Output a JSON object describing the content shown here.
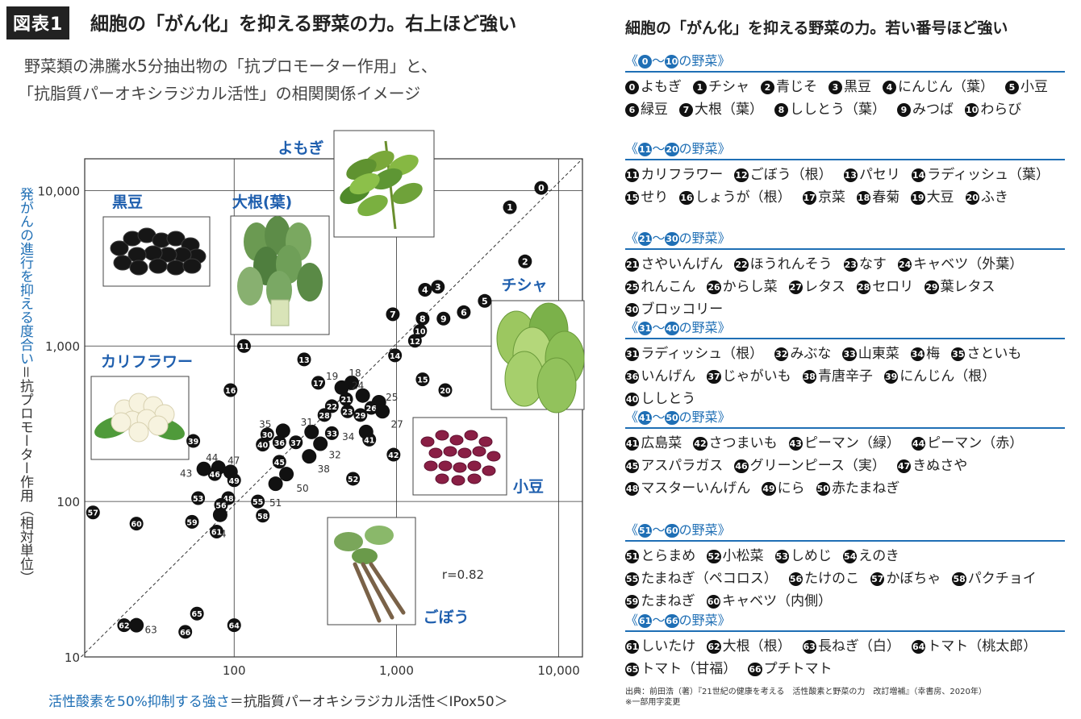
{
  "header": {
    "fig_label": "図表1",
    "title": "細胞の「がん化」を抑える野菜の力。右上ほど強い",
    "desc_line1": "野菜類の沸騰水5分抽出物の「抗プロモーター作用」と、",
    "desc_line2": "「抗脂質パーオキシラジカル活性」の相関関係イメージ"
  },
  "chart_data": {
    "type": "scatter",
    "xscale": "log",
    "yscale": "log",
    "xlim": [
      12,
      14000
    ],
    "ylim": [
      10,
      16000
    ],
    "xticks": [
      "100",
      "1,000",
      "10,000"
    ],
    "yticks": [
      "10",
      "100",
      "1,000",
      "10,000"
    ],
    "ylabel_blue": "発がんの進行を抑える度合い",
    "ylabel_rest": "＝抗プロモーター作用（相対単位）",
    "xlabel_blue": "活性酸素を50%抑制する強さ",
    "xlabel_rest": "＝抗脂質パーオキシラジカル活性＜IPox50＞",
    "correlation": "r=0.82",
    "annotations": [
      "よもぎ",
      "黒豆",
      "大根(葉)",
      "チシャ",
      "カリフラワー",
      "小豆",
      "ごぼう"
    ],
    "points": [
      {
        "label": "0",
        "x": 7800,
        "y": 10400
      },
      {
        "label": "1",
        "x": 5000,
        "y": 7800
      },
      {
        "label": "2",
        "x": 6200,
        "y": 3500
      },
      {
        "label": "3",
        "x": 1800,
        "y": 2400
      },
      {
        "label": "4",
        "x": 1500,
        "y": 2300
      },
      {
        "label": "5",
        "x": 3500,
        "y": 1950
      },
      {
        "label": "6",
        "x": 2600,
        "y": 1650
      },
      {
        "label": "7",
        "x": 950,
        "y": 1600
      },
      {
        "label": "8",
        "x": 1450,
        "y": 1500
      },
      {
        "label": "9",
        "x": 1950,
        "y": 1500
      },
      {
        "label": "10",
        "x": 1400,
        "y": 1250
      },
      {
        "label": "11",
        "x": 115,
        "y": 1000
      },
      {
        "label": "12",
        "x": 1300,
        "y": 1080
      },
      {
        "label": "13",
        "x": 270,
        "y": 820
      },
      {
        "label": "14",
        "x": 980,
        "y": 870
      },
      {
        "label": "15",
        "x": 1450,
        "y": 610
      },
      {
        "label": "16",
        "x": 95,
        "y": 520
      },
      {
        "label": "17",
        "x": 330,
        "y": 580
      },
      {
        "label": "18",
        "x": 530,
        "y": 580
      },
      {
        "label": "19",
        "x": 460,
        "y": 540
      },
      {
        "label": "20",
        "x": 2000,
        "y": 520
      },
      {
        "label": "21",
        "x": 490,
        "y": 455
      },
      {
        "label": "22",
        "x": 400,
        "y": 410
      },
      {
        "label": "23",
        "x": 500,
        "y": 380
      },
      {
        "label": "24",
        "x": 620,
        "y": 480
      },
      {
        "label": "25",
        "x": 780,
        "y": 435
      },
      {
        "label": "26",
        "x": 700,
        "y": 400
      },
      {
        "label": "27",
        "x": 820,
        "y": 380
      },
      {
        "label": "28",
        "x": 360,
        "y": 360
      },
      {
        "label": "29",
        "x": 600,
        "y": 360
      },
      {
        "label": "30",
        "x": 160,
        "y": 270
      },
      {
        "label": "31",
        "x": 300,
        "y": 280
      },
      {
        "label": "32",
        "x": 340,
        "y": 235
      },
      {
        "label": "33",
        "x": 400,
        "y": 275
      },
      {
        "label": "34",
        "x": 650,
        "y": 280
      },
      {
        "label": "35",
        "x": 200,
        "y": 285
      },
      {
        "label": "36",
        "x": 190,
        "y": 240
      },
      {
        "label": "37",
        "x": 240,
        "y": 240
      },
      {
        "label": "38",
        "x": 290,
        "y": 195
      },
      {
        "label": "39",
        "x": 56,
        "y": 245
      },
      {
        "label": "40",
        "x": 150,
        "y": 232
      },
      {
        "label": "41",
        "x": 680,
        "y": 250
      },
      {
        "label": "42",
        "x": 960,
        "y": 200
      },
      {
        "label": "43",
        "x": 65,
        "y": 162
      },
      {
        "label": "44",
        "x": 80,
        "y": 165
      },
      {
        "label": "45",
        "x": 190,
        "y": 180
      },
      {
        "label": "46",
        "x": 76,
        "y": 150
      },
      {
        "label": "47",
        "x": 95,
        "y": 155
      },
      {
        "label": "48",
        "x": 92,
        "y": 105
      },
      {
        "label": "49",
        "x": 100,
        "y": 137
      },
      {
        "label": "50",
        "x": 210,
        "y": 150
      },
      {
        "label": "51",
        "x": 180,
        "y": 130
      },
      {
        "label": "52",
        "x": 540,
        "y": 140
      },
      {
        "label": "53",
        "x": 60,
        "y": 105
      },
      {
        "label": "54",
        "x": 82,
        "y": 82
      },
      {
        "label": "55",
        "x": 140,
        "y": 100
      },
      {
        "label": "56",
        "x": 83,
        "y": 95
      },
      {
        "label": "57",
        "x": 13.5,
        "y": 85
      },
      {
        "label": "58",
        "x": 150,
        "y": 81
      },
      {
        "label": "59",
        "x": 55,
        "y": 74
      },
      {
        "label": "60",
        "x": 25,
        "y": 72
      },
      {
        "label": "61",
        "x": 78,
        "y": 64
      },
      {
        "label": "62",
        "x": 21,
        "y": 16
      },
      {
        "label": "63",
        "x": 25,
        "y": 16
      },
      {
        "label": "64",
        "x": 100,
        "y": 16
      },
      {
        "label": "65",
        "x": 59,
        "y": 19
      },
      {
        "label": "66",
        "x": 50,
        "y": 14.5
      }
    ]
  },
  "legend": {
    "title": "細胞の「がん化」を抑える野菜の力。若い番号ほど強い",
    "groups": [
      {
        "from": "0",
        "to": "10",
        "suffix": "の野菜》",
        "items": [
          {
            "n": "0",
            "name": "よもぎ"
          },
          {
            "n": "1",
            "name": "チシャ"
          },
          {
            "n": "2",
            "name": "青じそ"
          },
          {
            "n": "3",
            "name": "黒豆"
          },
          {
            "n": "4",
            "name": "にんじん（葉）"
          },
          {
            "n": "5",
            "name": "小豆"
          },
          {
            "n": "6",
            "name": "緑豆"
          },
          {
            "n": "7",
            "name": "大根（葉）"
          },
          {
            "n": "8",
            "name": "ししとう（葉）"
          },
          {
            "n": "9",
            "name": "みつば"
          },
          {
            "n": "10",
            "name": "わらび"
          }
        ]
      },
      {
        "from": "11",
        "to": "20",
        "suffix": "の野菜》",
        "items": [
          {
            "n": "11",
            "name": "カリフラワー"
          },
          {
            "n": "12",
            "name": "ごぼう（根）"
          },
          {
            "n": "13",
            "name": "パセリ"
          },
          {
            "n": "14",
            "name": "ラディッシュ（葉）"
          },
          {
            "n": "15",
            "name": "せり"
          },
          {
            "n": "16",
            "name": "しょうが（根）"
          },
          {
            "n": "17",
            "name": "京菜"
          },
          {
            "n": "18",
            "name": "春菊"
          },
          {
            "n": "19",
            "name": "大豆"
          },
          {
            "n": "20",
            "name": "ふき"
          }
        ]
      },
      {
        "from": "21",
        "to": "30",
        "suffix": "の野菜》",
        "items": [
          {
            "n": "21",
            "name": "さやいんげん"
          },
          {
            "n": "22",
            "name": "ほうれんそう"
          },
          {
            "n": "23",
            "name": "なす"
          },
          {
            "n": "24",
            "name": "キャベツ（外葉）"
          },
          {
            "n": "25",
            "name": "れんこん"
          },
          {
            "n": "26",
            "name": "からし菜"
          },
          {
            "n": "27",
            "name": "レタス"
          },
          {
            "n": "28",
            "name": "セロリ"
          },
          {
            "n": "29",
            "name": "葉レタス"
          },
          {
            "n": "30",
            "name": "ブロッコリー"
          }
        ]
      },
      {
        "from": "31",
        "to": "40",
        "suffix": "の野菜》",
        "items": [
          {
            "n": "31",
            "name": "ラディッシュ（根）"
          },
          {
            "n": "32",
            "name": "みぶな"
          },
          {
            "n": "33",
            "name": "山東菜"
          },
          {
            "n": "34",
            "name": "梅"
          },
          {
            "n": "35",
            "name": "さといも"
          },
          {
            "n": "36",
            "name": "いんげん"
          },
          {
            "n": "37",
            "name": "じゃがいも"
          },
          {
            "n": "38",
            "name": "青唐辛子"
          },
          {
            "n": "39",
            "name": "にんじん（根）"
          },
          {
            "n": "40",
            "name": "ししとう"
          }
        ]
      },
      {
        "from": "41",
        "to": "50",
        "suffix": "の野菜》",
        "items": [
          {
            "n": "41",
            "name": "広島菜"
          },
          {
            "n": "42",
            "name": "さつまいも"
          },
          {
            "n": "43",
            "name": "ピーマン（緑）"
          },
          {
            "n": "44",
            "name": "ピーマン（赤）"
          },
          {
            "n": "45",
            "name": "アスパラガス"
          },
          {
            "n": "46",
            "name": "グリーンピース（実）"
          },
          {
            "n": "47",
            "name": "きぬさや"
          },
          {
            "n": "48",
            "name": "マスターいんげん"
          },
          {
            "n": "49",
            "name": "にら"
          },
          {
            "n": "50",
            "name": "赤たまねぎ"
          }
        ]
      },
      {
        "from": "51",
        "to": "60",
        "suffix": "の野菜》",
        "items": [
          {
            "n": "51",
            "name": "とらまめ"
          },
          {
            "n": "52",
            "name": "小松菜"
          },
          {
            "n": "53",
            "name": "しめじ"
          },
          {
            "n": "54",
            "name": "えのき"
          },
          {
            "n": "55",
            "name": "たまねぎ（ペコロス）"
          },
          {
            "n": "56",
            "name": "たけのこ"
          },
          {
            "n": "57",
            "name": "かぼちゃ"
          },
          {
            "n": "58",
            "name": "パクチョイ"
          },
          {
            "n": "59",
            "name": "たまねぎ"
          },
          {
            "n": "60",
            "name": "キャベツ（内側）"
          }
        ]
      },
      {
        "from": "61",
        "to": "66",
        "suffix": "の野菜》",
        "items": [
          {
            "n": "61",
            "name": "しいたけ"
          },
          {
            "n": "62",
            "name": "大根（根）"
          },
          {
            "n": "63",
            "name": "長ねぎ（白）"
          },
          {
            "n": "64",
            "name": "トマト（桃太郎）"
          },
          {
            "n": "65",
            "name": "トマト（甘福）"
          },
          {
            "n": "66",
            "name": "プチトマト"
          }
        ]
      }
    ]
  },
  "source": {
    "line1": "出典：前田浩（著）『21世紀の健康を考える　活性酸素と野菜の力　改訂増補』（幸書房、2020年）",
    "line2": "※一部用字変更"
  }
}
